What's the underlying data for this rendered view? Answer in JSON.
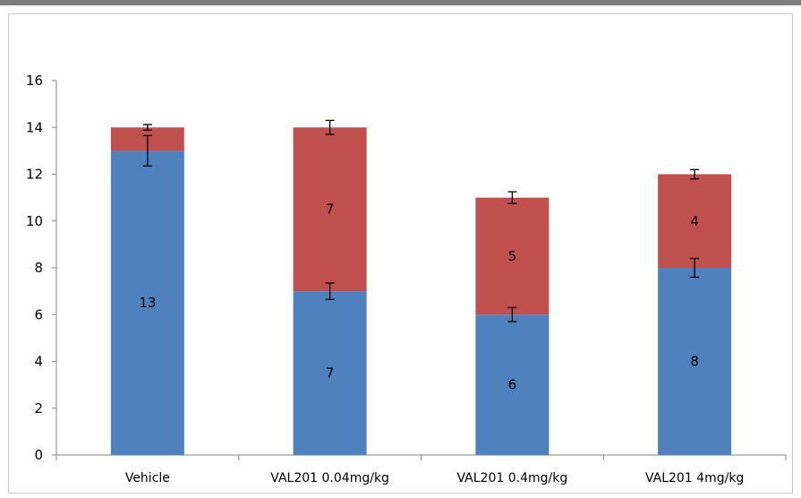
{
  "chart_data": {
    "type": "bar",
    "stacked": true,
    "title": "",
    "xlabel": "",
    "ylabel": "",
    "ylim": [
      0,
      16
    ],
    "yticks": [
      0,
      2,
      4,
      6,
      8,
      10,
      12,
      14,
      16
    ],
    "grid": false,
    "legend": "none",
    "categories": [
      "Vehicle",
      "VAL201 0.04mg/kg",
      "VAL201 0.4mg/kg",
      "VAL201 4mg/kg"
    ],
    "series": [
      {
        "color": "#4f81bd",
        "values": [
          13,
          7,
          6,
          8
        ],
        "errors": [
          0.65,
          0.35,
          0.3,
          0.4
        ],
        "labels": [
          "13",
          "7",
          "6",
          "8"
        ]
      },
      {
        "color": "#c0504d",
        "values": [
          1,
          7,
          5,
          4
        ],
        "errors": [
          0.12,
          0.3,
          0.25,
          0.2
        ],
        "labels": [
          "",
          "7",
          "5",
          "4"
        ]
      }
    ]
  }
}
